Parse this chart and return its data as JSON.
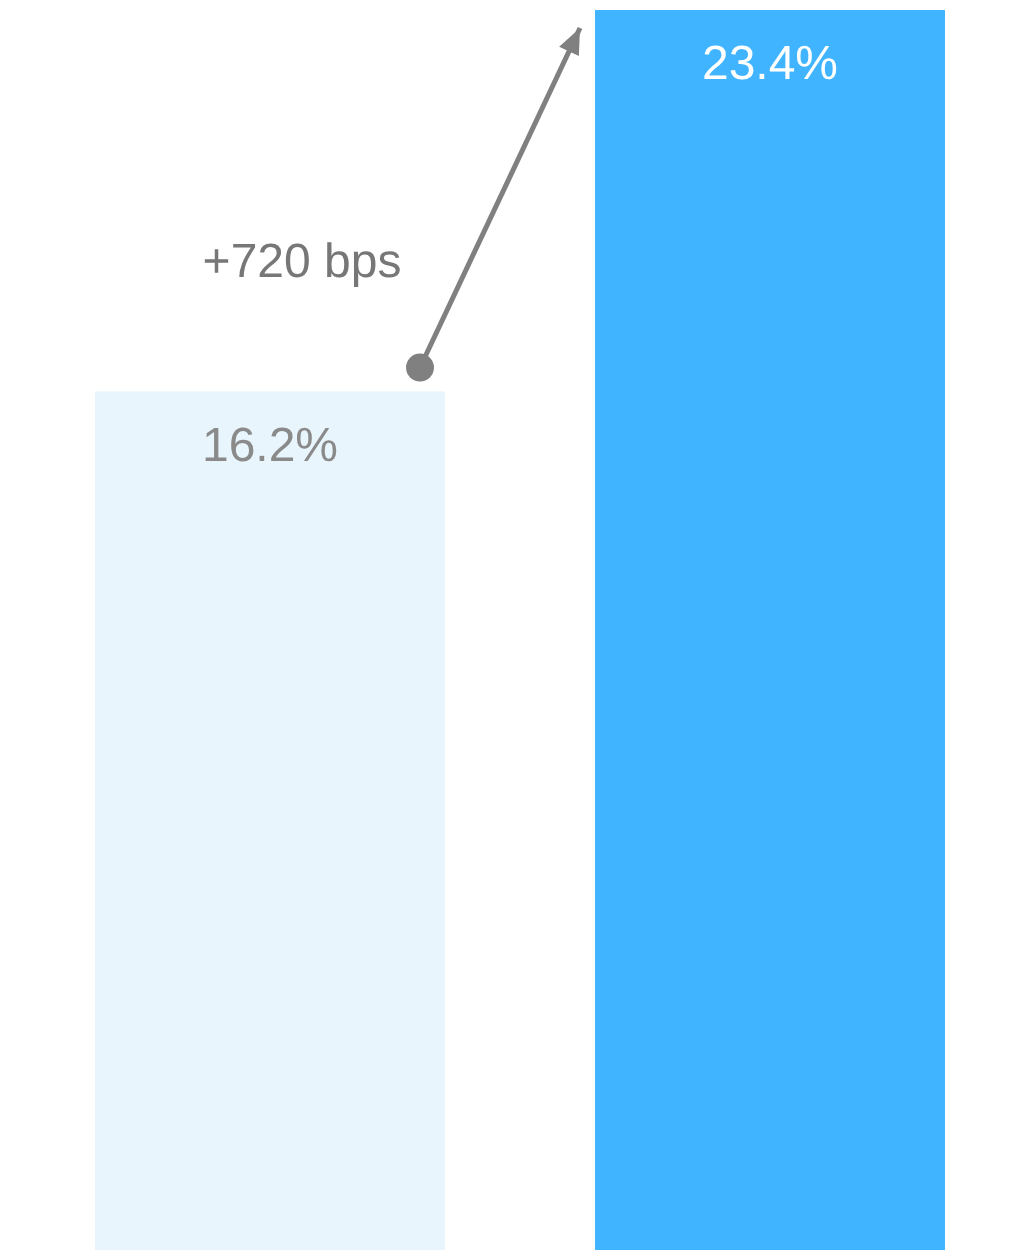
{
  "chart_data": {
    "type": "bar",
    "categories": [
      null,
      null
    ],
    "values": [
      16.2,
      23.4
    ],
    "colors": [
      "#e8f5fc",
      "#40b4ff"
    ],
    "value_labels": [
      "16.2%",
      "23.4%"
    ],
    "annotations": [
      "+720 bps"
    ]
  }
}
